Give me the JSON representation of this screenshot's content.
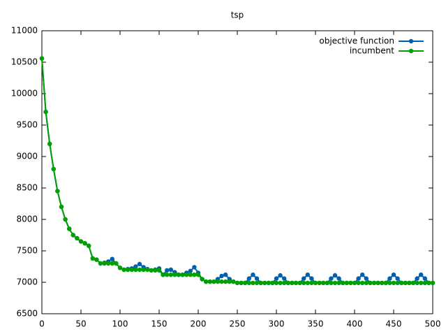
{
  "chart_data": {
    "type": "line",
    "title": "tsp",
    "x": [
      0,
      5,
      10,
      15,
      20,
      25,
      30,
      35,
      40,
      45,
      50,
      55,
      60,
      65,
      70,
      75,
      80,
      85,
      90,
      95,
      100,
      105,
      110,
      115,
      120,
      125,
      130,
      135,
      140,
      145,
      150,
      155,
      160,
      165,
      170,
      175,
      180,
      185,
      190,
      195,
      200,
      205,
      210,
      215,
      220,
      225,
      230,
      235,
      240,
      245,
      250,
      255,
      260,
      265,
      270,
      275,
      280,
      285,
      290,
      295,
      300,
      305,
      310,
      315,
      320,
      325,
      330,
      335,
      340,
      345,
      350,
      355,
      360,
      365,
      370,
      375,
      380,
      385,
      390,
      395,
      400,
      405,
      410,
      415,
      420,
      425,
      430,
      435,
      440,
      445,
      450,
      455,
      460,
      465,
      470,
      475,
      480,
      485,
      490,
      495,
      500
    ],
    "series": [
      {
        "name": "objective function",
        "color": "#0060ad",
        "values": [
          10560,
          9710,
          9200,
          8800,
          8450,
          8200,
          8000,
          7850,
          7750,
          7700,
          7650,
          7620,
          7580,
          7380,
          7360,
          7300,
          7310,
          7330,
          7370,
          7300,
          7230,
          7200,
          7210,
          7220,
          7250,
          7290,
          7240,
          7210,
          7190,
          7200,
          7220,
          7120,
          7190,
          7200,
          7160,
          7120,
          7120,
          7150,
          7180,
          7240,
          7150,
          7050,
          7010,
          7010,
          7010,
          7050,
          7100,
          7120,
          7050,
          7010,
          6990,
          6990,
          6990,
          7060,
          7120,
          7060,
          6990,
          6990,
          6990,
          6990,
          7060,
          7110,
          7060,
          6990,
          6990,
          6990,
          6990,
          7060,
          7120,
          7060,
          6990,
          6990,
          6990,
          6990,
          7060,
          7110,
          7060,
          6990,
          6990,
          6990,
          6990,
          7060,
          7120,
          7060,
          6990,
          6990,
          6990,
          6990,
          6990,
          7060,
          7120,
          7060,
          6990,
          6990,
          6990,
          6990,
          7060,
          7120,
          7060,
          6990,
          6990
        ]
      },
      {
        "name": "incumbent",
        "color": "#00a000",
        "values": [
          10560,
          9710,
          9200,
          8800,
          8450,
          8200,
          8000,
          7850,
          7750,
          7700,
          7650,
          7620,
          7580,
          7380,
          7360,
          7300,
          7300,
          7300,
          7300,
          7300,
          7230,
          7200,
          7200,
          7200,
          7200,
          7200,
          7200,
          7200,
          7190,
          7190,
          7190,
          7120,
          7120,
          7120,
          7120,
          7120,
          7120,
          7120,
          7120,
          7120,
          7120,
          7050,
          7010,
          7010,
          7010,
          7010,
          7010,
          7010,
          7010,
          7010,
          6990,
          6990,
          6990,
          6990,
          6990,
          6990,
          6990,
          6990,
          6990,
          6990,
          6990,
          6990,
          6990,
          6990,
          6990,
          6990,
          6990,
          6990,
          6990,
          6990,
          6990,
          6990,
          6990,
          6990,
          6990,
          6990,
          6990,
          6990,
          6990,
          6990,
          6990,
          6990,
          6990,
          6990,
          6990,
          6990,
          6990,
          6990,
          6990,
          6990,
          6990,
          6990,
          6990,
          6990,
          6990,
          6990,
          6990,
          6990,
          6990,
          6990,
          6990
        ]
      }
    ],
    "xlim": [
      0,
      500
    ],
    "xticks": [
      0,
      50,
      100,
      150,
      200,
      250,
      300,
      350,
      400,
      450,
      500
    ],
    "ylim": [
      6500,
      11000
    ],
    "yticks": [
      6500,
      7000,
      7500,
      8000,
      8500,
      9000,
      9500,
      10000,
      10500,
      11000
    ],
    "legend": "top-right"
  }
}
